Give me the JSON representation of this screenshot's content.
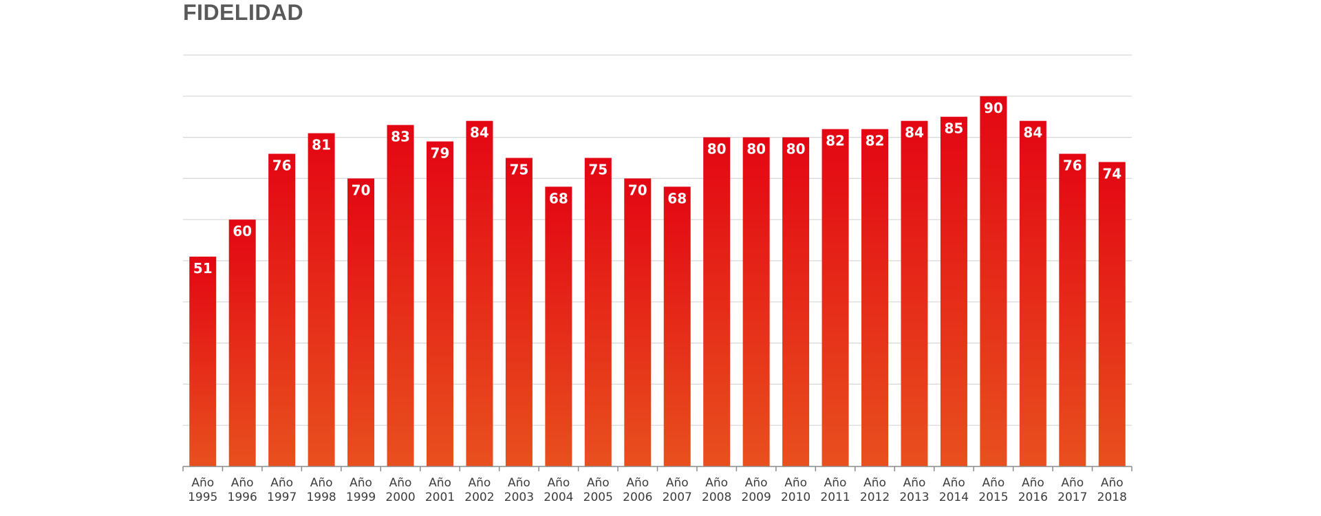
{
  "chart_data": {
    "type": "bar",
    "title": "FIDELIDAD",
    "xlabel": "",
    "ylabel": "",
    "ylim": [
      0,
      100
    ],
    "grid": true,
    "legend": "none",
    "categories": [
      [
        "Año",
        "1995"
      ],
      [
        "Año",
        "1996"
      ],
      [
        "Año",
        "1997"
      ],
      [
        "Año",
        "1998"
      ],
      [
        "Año",
        "1999"
      ],
      [
        "Año",
        "2000"
      ],
      [
        "Año",
        "2001"
      ],
      [
        "Año",
        "2002"
      ],
      [
        "Año",
        "2003"
      ],
      [
        "Año",
        "2004"
      ],
      [
        "Año",
        "2005"
      ],
      [
        "Año",
        "2006"
      ],
      [
        "Año",
        "2007"
      ],
      [
        "Año",
        "2008"
      ],
      [
        "Año",
        "2009"
      ],
      [
        "Año",
        "2010"
      ],
      [
        "Año",
        "2011"
      ],
      [
        "Año",
        "2012"
      ],
      [
        "Año",
        "2013"
      ],
      [
        "Año",
        "2014"
      ],
      [
        "Año",
        "2015"
      ],
      [
        "Año",
        "2016"
      ],
      [
        "Año",
        "2017"
      ],
      [
        "Año",
        "2018"
      ]
    ],
    "values": [
      51,
      60,
      76,
      81,
      70,
      83,
      79,
      84,
      75,
      68,
      75,
      70,
      68,
      80,
      80,
      80,
      82,
      82,
      84,
      85,
      90,
      84,
      76,
      74
    ],
    "colors": {
      "bar_top": "#e30613",
      "bar_bottom": "#e8501e",
      "gridline": "#d6d6d6",
      "axis": "#8a8a8a",
      "title": "#595959",
      "data_label": "#ffffff"
    }
  }
}
